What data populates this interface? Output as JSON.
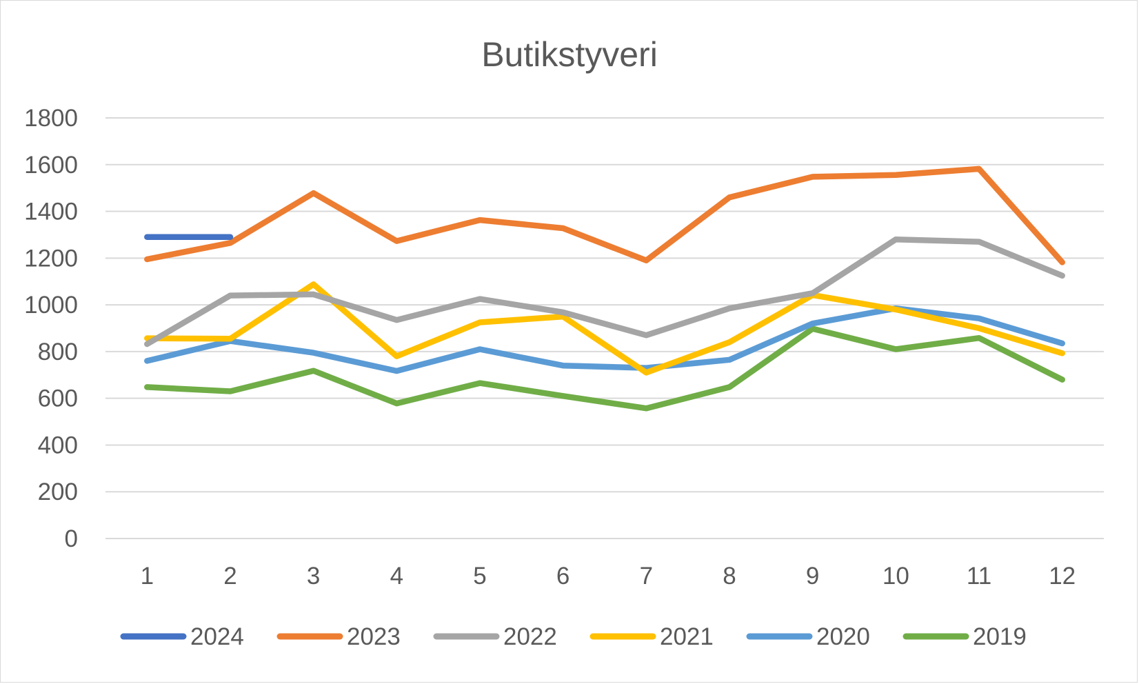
{
  "chart_data": {
    "type": "line",
    "title": "Butikstyveri",
    "xlabel": "",
    "ylabel": "",
    "categories": [
      "1",
      "2",
      "3",
      "4",
      "5",
      "6",
      "7",
      "8",
      "9",
      "10",
      "11",
      "12"
    ],
    "ylim": [
      0,
      1800
    ],
    "yticks": [
      0,
      200,
      400,
      600,
      800,
      1000,
      1200,
      1400,
      1600,
      1800
    ],
    "grid": true,
    "legend_position": "bottom",
    "series": [
      {
        "name": "2024",
        "color": "#4472C4",
        "values": [
          1290,
          1290,
          null,
          null,
          null,
          null,
          null,
          null,
          null,
          null,
          null,
          null
        ]
      },
      {
        "name": "2023",
        "color": "#ED7D31",
        "values": [
          1195,
          1265,
          1478,
          1273,
          1363,
          1328,
          1190,
          1460,
          1548,
          1556,
          1582,
          1182
        ]
      },
      {
        "name": "2022",
        "color": "#A5A5A5",
        "values": [
          832,
          1040,
          1045,
          935,
          1025,
          968,
          870,
          985,
          1050,
          1280,
          1270,
          1125
        ]
      },
      {
        "name": "2021",
        "color": "#FFC000",
        "values": [
          857,
          855,
          1088,
          780,
          925,
          950,
          710,
          840,
          1042,
          980,
          900,
          793
        ]
      },
      {
        "name": "2020",
        "color": "#5B9BD5",
        "values": [
          760,
          845,
          795,
          717,
          810,
          740,
          730,
          765,
          920,
          985,
          942,
          835
        ]
      },
      {
        "name": "2019",
        "color": "#70AD47",
        "values": [
          648,
          630,
          718,
          578,
          665,
          610,
          557,
          648,
          898,
          810,
          858,
          680
        ]
      }
    ]
  }
}
